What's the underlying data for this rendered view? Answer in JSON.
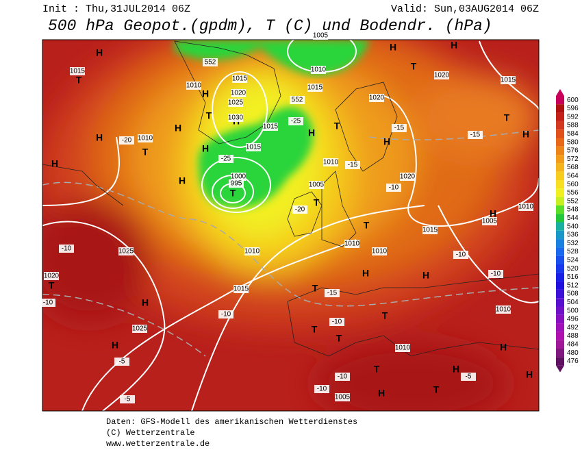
{
  "header": {
    "init": "Init : Thu,31JUL2014 06Z",
    "valid": "Valid: Sun,03AUG2014 06Z",
    "title": "500 hPa Geopot.(gpdm), T (C) und Bodendr. (hPa)"
  },
  "legend": {
    "labels": [
      600,
      596,
      592,
      588,
      584,
      580,
      576,
      572,
      568,
      564,
      560,
      556,
      552,
      548,
      544,
      540,
      536,
      532,
      528,
      524,
      520,
      516,
      512,
      508,
      504,
      500,
      496,
      492,
      488,
      484,
      480,
      476
    ]
  },
  "map": {
    "labels": [
      "H",
      "T",
      "1015",
      "1010",
      "H",
      "H",
      "T",
      "H",
      "H",
      "H",
      "H",
      "T",
      "1010",
      "H",
      "T",
      "1000",
      "995",
      "1015",
      "1015",
      "H",
      "T",
      "1010",
      "1005",
      "T",
      "T",
      "1010",
      "1010",
      "1010",
      "1015",
      "1025",
      "H",
      "1025",
      "H",
      "T",
      "1020",
      "T",
      "H",
      "T",
      "T",
      "T",
      "1010",
      "T",
      "H",
      "T",
      "H",
      "H",
      "H",
      "1010",
      "T",
      "H",
      "1015",
      "1005",
      "1010",
      "H",
      "1020",
      "H",
      "1020",
      "T",
      "H",
      "H",
      "1020",
      "1015",
      "T",
      "H",
      "1010",
      "1005",
      "1015",
      "1020",
      "1025",
      "1030",
      "1015",
      "1005",
      "-20",
      "-25",
      "-25",
      "-15",
      "-15",
      "-10",
      "-15",
      "-10",
      "-10",
      "-10",
      "-15",
      "-10",
      "-10",
      "-10",
      "-5",
      "-5",
      "-5",
      "-10",
      "-10",
      "-20",
      "552",
      "552"
    ]
  },
  "footer": {
    "lines": [
      "Daten: GFS-Modell des amerikanischen Wetterdienstes",
      "(C) Wetterzentrale",
      "www.wetterzentrale.de"
    ]
  }
}
